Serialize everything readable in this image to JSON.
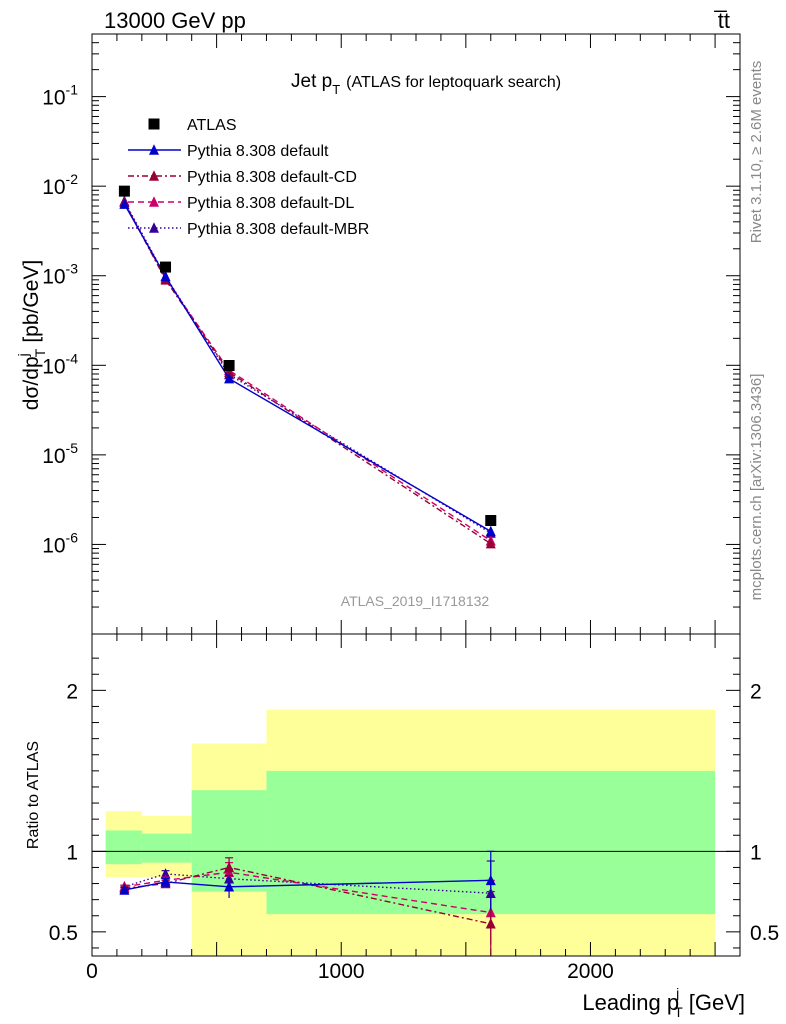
{
  "header": {
    "left": "13000 GeV pp",
    "right": "t̅t"
  },
  "side_labels": {
    "rivet": "Rivet 3.1.10, ≥ 2.6M events",
    "mcplots": "mcplots.cern.ch [arXiv:1306.3436]"
  },
  "chart_data": [
    {
      "panel": "main",
      "type": "scatter",
      "title": "Jet p_T (ATLAS for leptoquark search)",
      "title_main": "Jet p",
      "title_sub": "T",
      "title_extra": "(ATLAS for leptoquark search)",
      "watermark": "ATLAS_2019_I1718132",
      "ylabel": "dσ/dp_T^j [pb/GeV]",
      "ylabel_parts": {
        "pre": "dσ/dp",
        "sup": "j",
        "sub": "T",
        "post": "[pb/GeV]"
      },
      "yscale": "log",
      "xlim": [
        0,
        2600
      ],
      "ylim": [
        1e-07,
        0.5
      ],
      "y_ticks": [
        {
          "value": 0.1,
          "label": "10",
          "exp": "-1"
        },
        {
          "value": 0.01,
          "label": "10",
          "exp": "-2"
        },
        {
          "value": 0.001,
          "label": "10",
          "exp": "-3"
        },
        {
          "value": 0.0001,
          "label": "10",
          "exp": "-4"
        },
        {
          "value": 1e-05,
          "label": "10",
          "exp": "-5"
        },
        {
          "value": 1e-06,
          "label": "10",
          "exp": "-6"
        }
      ],
      "legend_position": "top-left",
      "series": [
        {
          "name": "ATLAS",
          "color": "#000000",
          "marker": "square",
          "dash": "none",
          "x": [
            130,
            295,
            550,
            1600
          ],
          "y": [
            0.0088,
            0.00125,
            9.95e-05,
            1.85e-06
          ]
        },
        {
          "name": "Pythia 8.308 default",
          "color": "#0000cc",
          "marker": "triangle",
          "dash": "solid",
          "x": [
            130,
            295,
            550,
            1600
          ],
          "y": [
            0.0063,
            0.00098,
            7.1e-05,
            1.4e-06
          ]
        },
        {
          "name": "Pythia 8.308 default-CD",
          "color": "#990033",
          "marker": "triangle",
          "dash": "6,3,2,3",
          "x": [
            130,
            295,
            550,
            1600
          ],
          "y": [
            0.0066,
            0.0009,
            8.4e-05,
            1.02e-06
          ]
        },
        {
          "name": "Pythia 8.308 default-DL",
          "color": "#cc0066",
          "marker": "triangle",
          "dash": "6,4",
          "x": [
            130,
            295,
            550,
            1600
          ],
          "y": [
            0.0066,
            0.00093,
            8.8e-05,
            1.1e-06
          ]
        },
        {
          "name": "Pythia 8.308 default-MBR",
          "color": "#330099",
          "marker": "triangle",
          "dash": "1.5,2.5",
          "x": [
            130,
            295,
            550,
            1600
          ],
          "y": [
            0.0068,
            0.00098,
            7.9e-05,
            1.34e-06
          ]
        }
      ]
    },
    {
      "panel": "ratio",
      "type": "line",
      "ylabel": "Ratio to ATLAS",
      "xlabel": "Leading p_T^j [GeV]",
      "xlabel_parts": {
        "pre": "Leading p",
        "sup": "j",
        "sub": "T",
        "post": "[GeV]"
      },
      "xlim": [
        0,
        2600
      ],
      "ylim": [
        0.35,
        2.35
      ],
      "x_ticks": [
        {
          "value": 0,
          "label": "0"
        },
        {
          "value": 1000,
          "label": "1000"
        },
        {
          "value": 2000,
          "label": "2000"
        }
      ],
      "y_ticks": [
        {
          "value": 0.5,
          "label": "0.5"
        },
        {
          "value": 1,
          "label": "1"
        },
        {
          "value": 2,
          "label": "2"
        }
      ],
      "bands": [
        {
          "x0": 55,
          "x1": 200,
          "yellow": [
            0.84,
            1.25
          ],
          "green": [
            0.92,
            1.13
          ]
        },
        {
          "x0": 200,
          "x1": 400,
          "yellow": [
            0.84,
            1.22
          ],
          "green": [
            0.93,
            1.11
          ]
        },
        {
          "x0": 400,
          "x1": 700,
          "yellow": [
            0.35,
            1.67
          ],
          "green": [
            0.75,
            1.38
          ]
        },
        {
          "x0": 700,
          "x1": 2500,
          "yellow": [
            0.35,
            1.88
          ],
          "green": [
            0.61,
            1.5
          ]
        }
      ],
      "series": [
        {
          "name": "Pythia 8.308 default",
          "color": "#0000cc",
          "dash": "solid",
          "x": [
            130,
            295,
            550,
            1600
          ],
          "y": [
            0.76,
            0.81,
            0.78,
            0.82
          ],
          "err": [
            0.015,
            0.02,
            0.07,
            0.18
          ]
        },
        {
          "name": "Pythia 8.308 default-CD",
          "color": "#990033",
          "dash": "6,3,2,3",
          "x": [
            130,
            295,
            550,
            1600
          ],
          "y": [
            0.77,
            0.8,
            0.9,
            0.55
          ],
          "err": [
            0.01,
            0.02,
            0.06,
            0.2
          ]
        },
        {
          "name": "Pythia 8.308 default-DL",
          "color": "#cc0066",
          "dash": "6,4",
          "x": [
            130,
            295,
            550,
            1600
          ],
          "y": [
            0.78,
            0.82,
            0.87,
            0.62
          ],
          "err": [
            0.01,
            0.02,
            0.06,
            0.2
          ]
        },
        {
          "name": "Pythia 8.308 default-MBR",
          "color": "#330099",
          "dash": "1.5,2.5",
          "x": [
            130,
            295,
            550,
            1600
          ],
          "y": [
            0.78,
            0.86,
            0.83,
            0.74
          ],
          "err": [
            0.01,
            0.02,
            0.06,
            0.2
          ]
        }
      ]
    }
  ]
}
